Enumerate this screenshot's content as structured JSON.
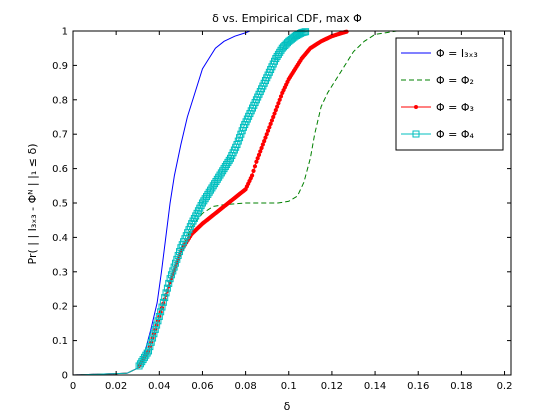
{
  "chart_data": {
    "type": "line",
    "title": "δ vs. Empirical CDF, max Φ",
    "xlabel": "δ",
    "ylabel": "Pr( | | I₃ₓ₃ - Φᴺ | |₁ ≤ δ)",
    "xlim": [
      0,
      0.203
    ],
    "ylim": [
      0,
      1
    ],
    "xticks": [
      0,
      0.02,
      0.04,
      0.06,
      0.08,
      0.1,
      0.12,
      0.14,
      0.16,
      0.18,
      0.2
    ],
    "xtick_labels": [
      "0",
      "0.02",
      "0.04",
      "0.06",
      "0.08",
      "0.1",
      "0.12",
      "0.14",
      "0.16",
      "0.18",
      "0.2"
    ],
    "yticks": [
      0,
      0.1,
      0.2,
      0.3,
      0.4,
      0.5,
      0.6,
      0.7,
      0.8,
      0.9,
      1
    ],
    "ytick_labels": [
      "0",
      "0.1",
      "0.2",
      "0.3",
      "0.4",
      "0.5",
      "0.6",
      "0.7",
      "0.8",
      "0.9",
      "1"
    ],
    "grid": false,
    "legend_position": "top-right",
    "series": [
      {
        "name": "Φ = I₃ₓ₃",
        "color": "#0000ff",
        "style": "solid",
        "marker": "none",
        "x": [
          0,
          0.025,
          0.03,
          0.033,
          0.036,
          0.039,
          0.041,
          0.043,
          0.045,
          0.047,
          0.05,
          0.053,
          0.056,
          0.058,
          0.06,
          0.063,
          0.066,
          0.07,
          0.075,
          0.08,
          0.082,
          0.085,
          0.203
        ],
        "y": [
          0,
          0.005,
          0.02,
          0.06,
          0.13,
          0.21,
          0.3,
          0.4,
          0.5,
          0.58,
          0.67,
          0.75,
          0.81,
          0.85,
          0.89,
          0.92,
          0.95,
          0.97,
          0.985,
          0.995,
          1,
          1,
          1
        ]
      },
      {
        "name": "Φ = Φ₂",
        "color": "#008000",
        "style": "dashed",
        "marker": "none",
        "x": [
          0,
          0.025,
          0.03,
          0.035,
          0.04,
          0.045,
          0.05,
          0.055,
          0.06,
          0.065,
          0.07,
          0.08,
          0.09,
          0.095,
          0.1,
          0.104,
          0.107,
          0.11,
          0.112,
          0.115,
          0.118,
          0.12,
          0.123,
          0.126,
          0.13,
          0.135,
          0.14,
          0.145,
          0.15,
          0.203
        ],
        "y": [
          0,
          0.005,
          0.02,
          0.07,
          0.17,
          0.27,
          0.36,
          0.43,
          0.47,
          0.49,
          0.495,
          0.5,
          0.5,
          0.5,
          0.505,
          0.52,
          0.56,
          0.63,
          0.7,
          0.78,
          0.82,
          0.84,
          0.87,
          0.9,
          0.94,
          0.97,
          0.99,
          0.995,
          1,
          1
        ]
      },
      {
        "name": "Φ = Φ₃",
        "color": "#ff0000",
        "style": "solid",
        "marker": "point",
        "x": [
          0,
          0.025,
          0.03,
          0.035,
          0.04,
          0.045,
          0.05,
          0.055,
          0.06,
          0.064,
          0.068,
          0.072,
          0.076,
          0.08,
          0.083,
          0.085,
          0.088,
          0.091,
          0.094,
          0.097,
          0.1,
          0.103,
          0.106,
          0.11,
          0.115,
          0.12,
          0.125,
          0.128,
          0.203
        ],
        "y": [
          0,
          0.005,
          0.02,
          0.07,
          0.17,
          0.27,
          0.36,
          0.41,
          0.44,
          0.46,
          0.48,
          0.5,
          0.52,
          0.54,
          0.58,
          0.62,
          0.67,
          0.72,
          0.77,
          0.82,
          0.86,
          0.89,
          0.92,
          0.95,
          0.97,
          0.985,
          0.995,
          1,
          1
        ]
      },
      {
        "name": "Φ = Φ₄",
        "color": "#00bfbf",
        "style": "solid",
        "marker": "square",
        "x": [
          0,
          0.025,
          0.03,
          0.035,
          0.04,
          0.045,
          0.05,
          0.055,
          0.06,
          0.065,
          0.07,
          0.073,
          0.076,
          0.079,
          0.082,
          0.085,
          0.088,
          0.091,
          0.094,
          0.097,
          0.1,
          0.103,
          0.106,
          0.109,
          0.203
        ],
        "y": [
          0,
          0.005,
          0.02,
          0.07,
          0.17,
          0.28,
          0.37,
          0.44,
          0.5,
          0.55,
          0.6,
          0.63,
          0.67,
          0.72,
          0.76,
          0.8,
          0.84,
          0.88,
          0.92,
          0.95,
          0.97,
          0.985,
          0.995,
          1,
          1
        ]
      }
    ]
  }
}
